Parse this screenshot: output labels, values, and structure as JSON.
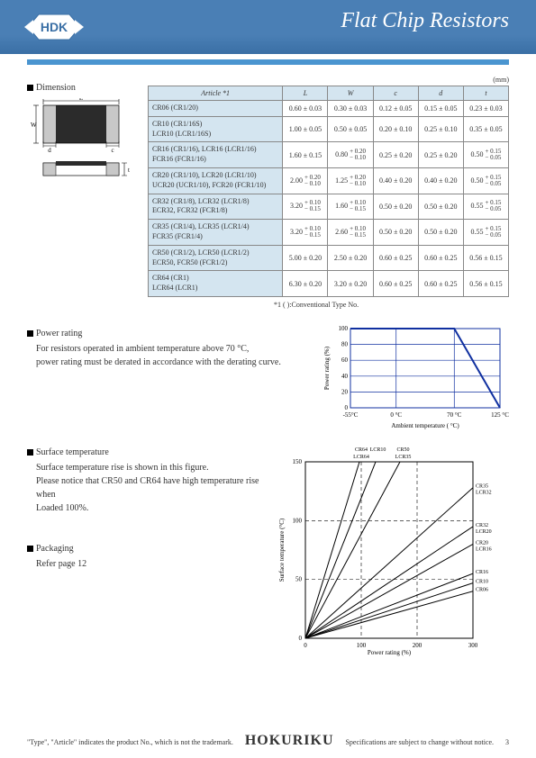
{
  "header": {
    "logo_text": "HDK",
    "title": "Flat Chip Resistors"
  },
  "dimension": {
    "label": "Dimension",
    "unit": "(mm)",
    "columns": [
      "Article  *1",
      "L",
      "W",
      "c",
      "d",
      "t"
    ],
    "rows": [
      {
        "article": "CR06 (CR1/20)",
        "L": "0.60 ± 0.03",
        "W": "0.30 ± 0.03",
        "c": "0.12 ± 0.05",
        "d": "0.15 ± 0.05",
        "t": "0.23 ± 0.03"
      },
      {
        "article": "CR10 (CR1/16S)\nLCR10 (LCR1/16S)",
        "L": "1.00 ± 0.05",
        "W": "0.50 ± 0.05",
        "c": "0.20 ± 0.10",
        "d": "0.25 ± 0.10",
        "t": "0.35 ± 0.05"
      },
      {
        "article": "CR16 (CR1/16),   LCR16 (LCR1/16)\nFCR16 (FCR1/16)",
        "L": "1.60 ± 0.15",
        "W": "0.80 +0.20/−0.10",
        "c": "0.25 ± 0.20",
        "d": "0.25 ± 0.20",
        "t": "0.50 +0.15/−0.05"
      },
      {
        "article": "CR20 (CR1/10), LCR20 (LCR1/10)\nUCR20 (UCR1/10), FCR20 (FCR1/10)",
        "L": "2.00 +0.20/−0.10",
        "W": "1.25 +0.20/−0.10",
        "c": "0.40 ± 0.20",
        "d": "0.40 ± 0.20",
        "t": "0.50 +0.15/−0.05"
      },
      {
        "article": "CR32 (CR1/8), LCR32 (LCR1/8)\nECR32, FCR32 (FCR1/8)",
        "L": "3.20 +0.10/−0.15",
        "W": "1.60 +0.10/−0.15",
        "c": "0.50 ± 0.20",
        "d": "0.50 ± 0.20",
        "t": "0.55 +0.15/−0.05"
      },
      {
        "article": "CR35 (CR1/4), LCR35 (LCR1/4)\nFCR35 (FCR1/4)",
        "L": "3.20 +0.10/−0.15",
        "W": "2.60 +0.10/−0.15",
        "c": "0.50 ± 0.20",
        "d": "0.50 ± 0.20",
        "t": "0.55 +0.15/−0.05"
      },
      {
        "article": "CR50 (CR1/2), LCR50 (LCR1/2)\nECR50, FCR50 (FCR1/2)",
        "L": "5.00 ± 0.20",
        "W": "2.50 ± 0.20",
        "c": "0.60 ± 0.25",
        "d": "0.60 ± 0.25",
        "t": "0.56 ± 0.15"
      },
      {
        "article": "CR64 (CR1)\nLCR64 (LCR1)",
        "L": "6.30 ± 0.20",
        "W": "3.20 ± 0.20",
        "c": "0.60 ± 0.25",
        "d": "0.60 ± 0.25",
        "t": "0.56 ± 0.15"
      }
    ],
    "note": "*1 (    ):Conventional Type No."
  },
  "power_rating": {
    "label": "Power rating",
    "text1": "For resistors operated in ambient temperature above 70 °C,",
    "text2": "power rating must be derated in accordance with the derating curve.",
    "chart": {
      "type": "line",
      "xlabel": "Ambient temperature ( °C)",
      "ylabel": "Power rating (%)",
      "xlim": [
        -55,
        125
      ],
      "ylim": [
        0,
        100
      ],
      "xticks": [
        -55,
        0,
        70,
        125
      ],
      "yticks": [
        0,
        20,
        40,
        60,
        80,
        100
      ],
      "line_points_x": [
        -55,
        70,
        125
      ],
      "line_points_y": [
        100,
        100,
        0
      ],
      "line_color": "#1030a0",
      "line_width": 2,
      "grid_color": "#1030a0",
      "grid_width": 0.7,
      "background_color": "#ffffff",
      "label_fontsize": 7
    }
  },
  "surface_temp": {
    "label": "Surface temperature",
    "text1": "Surface temperature rise is shown in this figure.",
    "text2": "Please notice that CR50 and CR64 have high temperature rise when",
    "text3": "Loaded 100%.",
    "chart": {
      "type": "line-multi",
      "xlabel": "Power rating (%)",
      "ylabel": "Surface temperature (°C)",
      "xlim": [
        0,
        300
      ],
      "ylim": [
        0,
        150
      ],
      "xticks": [
        0,
        100,
        200,
        300
      ],
      "yticks": [
        0,
        50,
        100,
        150
      ],
      "series": [
        {
          "name": "CR64 LCR64",
          "x": [
            0,
            100
          ],
          "y": [
            0,
            155
          ],
          "label_x": 100,
          "label_y": 160
        },
        {
          "name": "LCR10",
          "x": [
            0,
            130
          ],
          "y": [
            0,
            155
          ],
          "label_x": 130,
          "label_y": 160
        },
        {
          "name": "CR50 LCR35",
          "x": [
            0,
            175
          ],
          "y": [
            0,
            155
          ],
          "label_x": 175,
          "label_y": 160
        },
        {
          "name": "CR35 LCR32",
          "x": [
            0,
            300
          ],
          "y": [
            0,
            128
          ],
          "label_x": 305,
          "label_y": 128
        },
        {
          "name": "CR32 LCR20",
          "x": [
            0,
            300
          ],
          "y": [
            0,
            95
          ],
          "label_x": 305,
          "label_y": 95
        },
        {
          "name": "CR20 LCR16",
          "x": [
            0,
            300
          ],
          "y": [
            0,
            80
          ],
          "label_x": 305,
          "label_y": 80
        },
        {
          "name": "CR16",
          "x": [
            0,
            300
          ],
          "y": [
            0,
            55
          ],
          "label_x": 305,
          "label_y": 55
        },
        {
          "name": "CR10",
          "x": [
            0,
            300
          ],
          "y": [
            0,
            47
          ],
          "label_x": 305,
          "label_y": 47
        },
        {
          "name": "CR06",
          "x": [
            0,
            300
          ],
          "y": [
            0,
            40
          ],
          "label_x": 305,
          "label_y": 40
        }
      ],
      "line_color": "#000",
      "line_width": 1,
      "grid_dash": "4,3",
      "grid_100_x": [
        100,
        200
      ],
      "grid_100_y": [
        100
      ],
      "background_color": "#ffffff",
      "label_fontsize": 6
    }
  },
  "packaging": {
    "label": "Packaging",
    "text": "Refer page 12"
  },
  "footer": {
    "left": "\"Type\", \"Article\" indicates the product No., which is not the trademark.",
    "brand": "HOKURIKU",
    "right": "Specifications are subject to change without notice.",
    "page": "3"
  },
  "diagram": {
    "labels": {
      "L": "L",
      "W": "W",
      "c": "c",
      "d": "d",
      "t": "t"
    },
    "colors": {
      "body": "#2b2b2b",
      "end": "#c8c8c8",
      "line": "#000"
    }
  }
}
